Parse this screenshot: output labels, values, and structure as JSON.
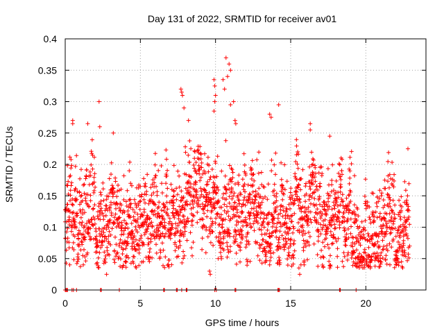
{
  "chart_data": {
    "type": "scatter",
    "title": "Day 131 of 2022, SRMTID for receiver av01",
    "xlabel": "GPS time / hours",
    "ylabel": "SRMTID / TECUs",
    "xlim": [
      0,
      24
    ],
    "ylim": [
      0,
      0.4
    ],
    "x_ticks": [
      0,
      5,
      10,
      15,
      20
    ],
    "x_tick_labels": [
      "0",
      "5",
      "10",
      "15",
      "20"
    ],
    "y_ticks": [
      0,
      0.05,
      0.1,
      0.15,
      0.2,
      0.25,
      0.3,
      0.35,
      0.4
    ],
    "y_tick_labels": [
      "0",
      "0.05",
      "0.1",
      "0.15",
      "0.2",
      "0.25",
      "0.3",
      "0.35",
      "0.4"
    ],
    "grid": true,
    "marker": "+",
    "color": "#ff0000",
    "generator": {
      "x_start": 0.0,
      "x_end": 22.9,
      "n_points": 2300,
      "base_profile": [
        [
          0,
          0.12
        ],
        [
          1,
          0.11
        ],
        [
          2,
          0.11
        ],
        [
          3,
          0.1
        ],
        [
          4,
          0.1
        ],
        [
          5,
          0.1
        ],
        [
          6,
          0.11
        ],
        [
          7,
          0.12
        ],
        [
          8,
          0.14
        ],
        [
          9,
          0.13
        ],
        [
          10,
          0.15
        ],
        [
          11,
          0.15
        ],
        [
          12,
          0.13
        ],
        [
          13,
          0.11
        ],
        [
          14,
          0.1
        ],
        [
          15,
          0.11
        ],
        [
          16,
          0.12
        ],
        [
          17,
          0.12
        ],
        [
          18,
          0.11
        ],
        [
          19,
          0.1
        ],
        [
          20,
          0.09
        ],
        [
          21,
          0.1
        ],
        [
          22,
          0.1
        ],
        [
          23,
          0.1
        ]
      ],
      "spread": 0.045,
      "seed": 131
    },
    "outliers": [
      {
        "x": 2.25,
        "y": 0.3
      },
      {
        "x": 2.3,
        "y": 0.26
      },
      {
        "x": 0.5,
        "y": 0.27
      },
      {
        "x": 0.5,
        "y": 0.265
      },
      {
        "x": 1.5,
        "y": 0.265
      },
      {
        "x": 3.2,
        "y": 0.25
      },
      {
        "x": 7.7,
        "y": 0.32
      },
      {
        "x": 7.75,
        "y": 0.315
      },
      {
        "x": 7.8,
        "y": 0.31
      },
      {
        "x": 7.9,
        "y": 0.29
      },
      {
        "x": 8.2,
        "y": 0.27
      },
      {
        "x": 9.9,
        "y": 0.335
      },
      {
        "x": 9.95,
        "y": 0.325
      },
      {
        "x": 10.0,
        "y": 0.31
      },
      {
        "x": 9.95,
        "y": 0.3
      },
      {
        "x": 9.9,
        "y": 0.285
      },
      {
        "x": 10.7,
        "y": 0.37
      },
      {
        "x": 10.9,
        "y": 0.36
      },
      {
        "x": 11.0,
        "y": 0.35
      },
      {
        "x": 10.8,
        "y": 0.34
      },
      {
        "x": 10.5,
        "y": 0.335
      },
      {
        "x": 10.6,
        "y": 0.32
      },
      {
        "x": 11.2,
        "y": 0.3
      },
      {
        "x": 11.0,
        "y": 0.295
      },
      {
        "x": 11.3,
        "y": 0.27
      },
      {
        "x": 11.35,
        "y": 0.265
      },
      {
        "x": 13.6,
        "y": 0.28
      },
      {
        "x": 13.7,
        "y": 0.275
      },
      {
        "x": 14.2,
        "y": 0.295
      },
      {
        "x": 16.3,
        "y": 0.265
      },
      {
        "x": 16.3,
        "y": 0.255
      },
      {
        "x": 17.6,
        "y": 0.245
      },
      {
        "x": 22.8,
        "y": 0.225
      },
      {
        "x": 2.75,
        "y": 0.025
      },
      {
        "x": 9.6,
        "y": 0.03
      },
      {
        "x": 9.65,
        "y": 0.025
      },
      {
        "x": 15.6,
        "y": 0.025
      },
      {
        "x": 15.55,
        "y": 0.035
      },
      {
        "x": 0.3,
        "y": 0.04
      },
      {
        "x": 20.3,
        "y": 0.035
      },
      {
        "x": 21.6,
        "y": 0.04
      }
    ],
    "zero_points_x": [
      0.0,
      0.05,
      0.1,
      0.15,
      0.45,
      0.55,
      0.75,
      2.35,
      2.4,
      3.6,
      6.55,
      6.6,
      7.4,
      7.45,
      7.75,
      8.05,
      8.1,
      9.95,
      10.05,
      11.3,
      11.35,
      14.15,
      14.2,
      14.25,
      18.25,
      18.3,
      19.35
    ]
  }
}
